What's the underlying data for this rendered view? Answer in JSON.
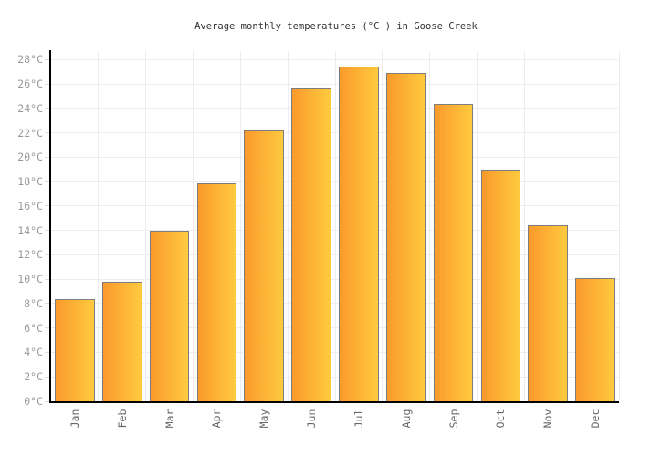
{
  "chart_data": {
    "type": "bar",
    "title": "Average monthly temperatures (°C ) in Goose Creek",
    "categories": [
      "Jan",
      "Feb",
      "Mar",
      "Apr",
      "May",
      "Jun",
      "Jul",
      "Aug",
      "Sep",
      "Oct",
      "Nov",
      "Dec"
    ],
    "values": [
      8.4,
      9.8,
      14.0,
      17.9,
      22.2,
      25.6,
      27.4,
      26.9,
      24.4,
      19.0,
      14.4,
      10.1
    ],
    "ylabel_unit": "°C",
    "y_ticks": [
      "0°C",
      "2°C",
      "4°C",
      "6°C",
      "8°C",
      "10°C",
      "12°C",
      "14°C",
      "16°C",
      "18°C",
      "20°C",
      "22°C",
      "24°C",
      "26°C",
      "28°C"
    ],
    "y_tick_values": [
      0,
      2,
      4,
      6,
      8,
      10,
      12,
      14,
      16,
      18,
      20,
      22,
      24,
      26,
      28
    ],
    "ylim": [
      0,
      28.7
    ],
    "grid": true,
    "legend": "none",
    "colors": {
      "bar_gradient_left": "#fa9a2c",
      "bar_gradient_right": "#ffca3f",
      "bar_border": "#7d7d7d",
      "axis": "#000000",
      "gridline": "#ededed",
      "y_tick_label": "#999999",
      "month_label": "#666666",
      "title": "#333333"
    }
  }
}
